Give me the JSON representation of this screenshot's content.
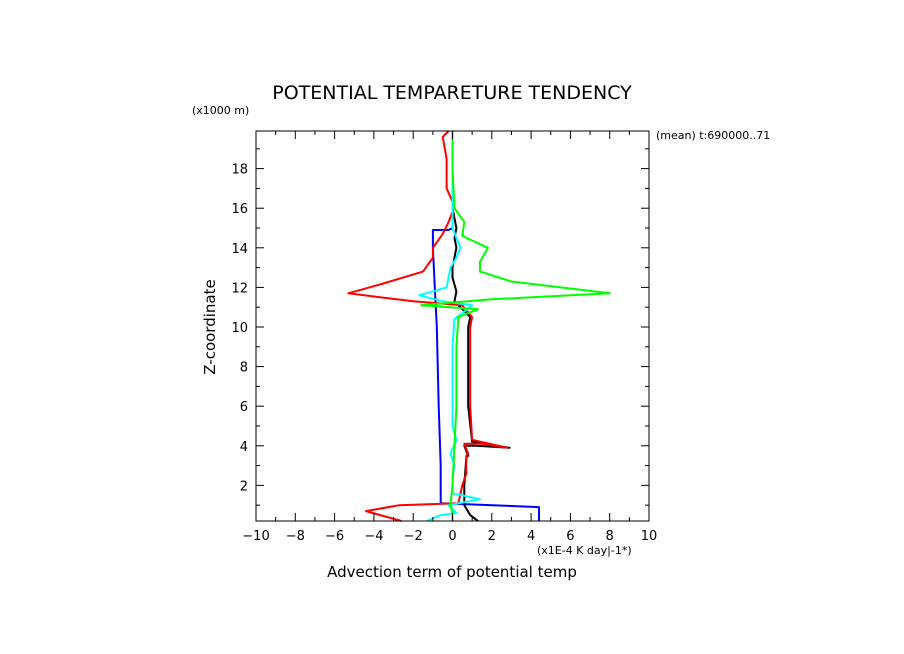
{
  "chart_data": {
    "type": "line",
    "title": "POTENTIAL TEMPARETURE TENDENCY",
    "y_unit_label": "(x1000 m)",
    "xlabel": "Advection term of potential temp",
    "x_unit_label": "(x1E-4 K day|-1*)",
    "ylabel": "Z-coordinate",
    "annotation": "(mean) t:690000..71",
    "xlim": [
      -10,
      10
    ],
    "ylim": [
      0.2,
      19.9
    ],
    "x_ticks": [
      -10,
      -8,
      -6,
      -4,
      -2,
      0,
      2,
      4,
      6,
      8,
      10
    ],
    "y_ticks": [
      2,
      4,
      6,
      8,
      10,
      12,
      14,
      16,
      18
    ],
    "grid": false,
    "series": [
      {
        "color": "#0000ff",
        "points": [
          [
            4.4,
            0.2
          ],
          [
            4.4,
            0.9
          ],
          [
            -0.6,
            1.1
          ],
          [
            -0.6,
            3.0
          ],
          [
            -0.7,
            6.0
          ],
          [
            -0.8,
            10.0
          ],
          [
            -0.9,
            12.0
          ],
          [
            -1.0,
            14.0
          ],
          [
            -1.0,
            14.9
          ],
          [
            -0.2,
            14.9
          ],
          [
            0,
            15.0
          ],
          [
            0,
            19.9
          ]
        ]
      },
      {
        "color": "#000000",
        "points": [
          [
            1.3,
            0.2
          ],
          [
            0.9,
            0.5
          ],
          [
            0.6,
            1.0
          ],
          [
            0.6,
            2.0
          ],
          [
            0.7,
            3.4
          ],
          [
            0.8,
            3.5
          ],
          [
            0.6,
            4.0
          ],
          [
            1.2,
            4.0
          ],
          [
            2.9,
            3.9
          ],
          [
            1.0,
            4.2
          ],
          [
            0.8,
            6.0
          ],
          [
            0.8,
            9.0
          ],
          [
            0.8,
            10.0
          ],
          [
            0.9,
            10.5
          ],
          [
            0.1,
            11.3
          ],
          [
            0.2,
            11.8
          ],
          [
            0.0,
            12.5
          ],
          [
            0.0,
            13.0
          ],
          [
            0.2,
            14.0
          ],
          [
            0.1,
            14.5
          ],
          [
            0.2,
            15.0
          ],
          [
            0.0,
            16.0
          ],
          [
            0.0,
            19.9
          ]
        ]
      },
      {
        "color": "#ff0000",
        "points": [
          [
            -2.6,
            0.2
          ],
          [
            -4.4,
            0.7
          ],
          [
            -2.7,
            1.0
          ],
          [
            0.3,
            1.1
          ],
          [
            0.5,
            2.0
          ],
          [
            0.7,
            2.6
          ],
          [
            0.7,
            3.5
          ],
          [
            0.8,
            3.6
          ],
          [
            0.6,
            4.1
          ],
          [
            1.5,
            4.1
          ],
          [
            2.8,
            3.9
          ],
          [
            1.0,
            4.3
          ],
          [
            0.9,
            6.0
          ],
          [
            0.9,
            9.0
          ],
          [
            0.9,
            10.0
          ],
          [
            1.0,
            10.5
          ],
          [
            0.5,
            11.1
          ],
          [
            -2.0,
            11.3
          ],
          [
            -5.3,
            11.7
          ],
          [
            -3.5,
            12.2
          ],
          [
            -1.5,
            12.8
          ],
          [
            -1.0,
            13.5
          ],
          [
            -1.0,
            14.0
          ],
          [
            -0.5,
            14.7
          ],
          [
            -0.2,
            15.3
          ],
          [
            0.1,
            16.1
          ],
          [
            -0.3,
            17.0
          ],
          [
            -0.3,
            18.5
          ],
          [
            -0.5,
            19.6
          ],
          [
            -0.2,
            19.9
          ]
        ]
      },
      {
        "color": "#00ffff",
        "points": [
          [
            -1.3,
            0.2
          ],
          [
            -0.6,
            0.5
          ],
          [
            0.2,
            0.6
          ],
          [
            -0.2,
            1.0
          ],
          [
            1.4,
            1.3
          ],
          [
            0.0,
            1.6
          ],
          [
            0.0,
            2.5
          ],
          [
            0.1,
            3.0
          ],
          [
            -0.1,
            3.6
          ],
          [
            0.2,
            4.3
          ],
          [
            0.0,
            5.0
          ],
          [
            0.0,
            9.0
          ],
          [
            0.1,
            10.4
          ],
          [
            1.0,
            11.1
          ],
          [
            -0.5,
            11.3
          ],
          [
            -1.7,
            11.6
          ],
          [
            -0.3,
            12.0
          ],
          [
            -0.1,
            13.0
          ],
          [
            0.2,
            13.5
          ],
          [
            0.4,
            14.0
          ],
          [
            0.2,
            14.5
          ],
          [
            0.0,
            15.0
          ],
          [
            0.0,
            19.9
          ]
        ]
      },
      {
        "color": "#00ff00",
        "points": [
          [
            0.0,
            0.2
          ],
          [
            0.0,
            0.6
          ],
          [
            -0.1,
            1.0
          ],
          [
            0.0,
            2.0
          ],
          [
            0.1,
            4.0
          ],
          [
            0.2,
            6.0
          ],
          [
            0.2,
            9.0
          ],
          [
            0.3,
            10.5
          ],
          [
            1.3,
            10.9
          ],
          [
            -1.6,
            11.1
          ],
          [
            2.0,
            11.4
          ],
          [
            8.0,
            11.7
          ],
          [
            3.0,
            12.3
          ],
          [
            1.4,
            12.8
          ],
          [
            1.4,
            13.3
          ],
          [
            1.8,
            14.0
          ],
          [
            0.5,
            14.6
          ],
          [
            0.6,
            15.3
          ],
          [
            0.1,
            16.0
          ],
          [
            0.0,
            18.0
          ],
          [
            0.0,
            19.9
          ]
        ]
      }
    ]
  }
}
